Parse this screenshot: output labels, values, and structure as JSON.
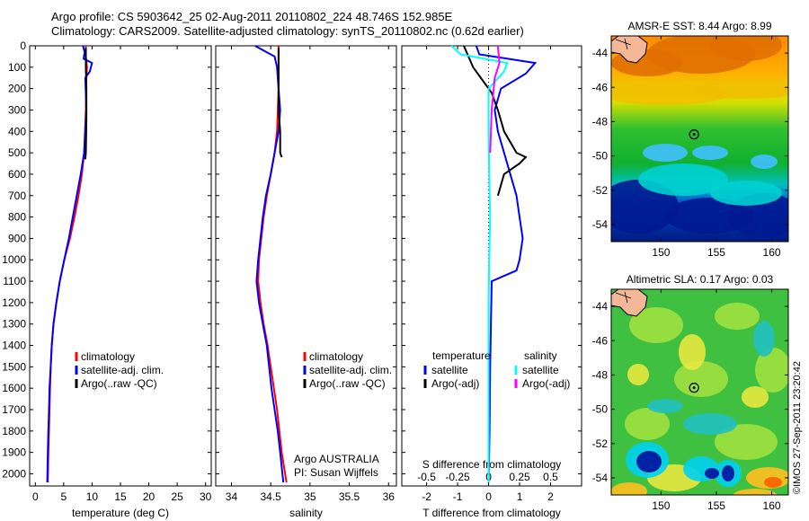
{
  "header": {
    "line1": "Argo profile: CS 5903642_25 02-Aug-2011 20110802_224 48.746S 152.985E",
    "line2": "Climatology: CARS2009. Satellite-adjusted climatology: synTS_20110802.nc (0.62d earlier)"
  },
  "stamp": "©IMOS 27-Sep-2011 23:20:42",
  "colors": {
    "red": "#ff0000",
    "blue": "#0000ff",
    "black": "#000000",
    "cyan": "#00ffff",
    "magenta": "#ff00ff"
  },
  "chart_data": [
    {
      "type": "line",
      "id": "temperature",
      "xlabel": "temperature (deg C)",
      "xlim": [
        -1,
        31
      ],
      "ylim": [
        2060,
        0
      ],
      "xticks": [
        "0",
        "5",
        "10",
        "15",
        "20",
        "25",
        "30"
      ],
      "xtick_values": [
        0,
        5,
        10,
        15,
        20,
        25,
        30
      ],
      "yticks": [
        0,
        100,
        200,
        300,
        400,
        500,
        600,
        700,
        800,
        900,
        1000,
        1100,
        1200,
        1300,
        1400,
        1500,
        1600,
        1700,
        1800,
        1900,
        2000
      ],
      "legend": [
        "climatology",
        "satellite-adj. clim.",
        "Argo(..raw -QC)"
      ],
      "series": [
        {
          "name": "climatology",
          "color": "red",
          "points": [
            [
              8.9,
              0
            ],
            [
              8.9,
              50
            ],
            [
              9.1,
              100
            ],
            [
              9.0,
              150
            ],
            [
              8.9,
              300
            ],
            [
              8.6,
              500
            ],
            [
              8.2,
              600
            ],
            [
              7.6,
              700
            ],
            [
              6.9,
              800
            ],
            [
              6.1,
              900
            ],
            [
              5.1,
              1000
            ],
            [
              4.3,
              1100
            ],
            [
              3.7,
              1200
            ],
            [
              3.2,
              1300
            ],
            [
              2.9,
              1400
            ],
            [
              2.7,
              1500
            ],
            [
              2.6,
              1600
            ],
            [
              2.5,
              1700
            ],
            [
              2.4,
              1800
            ],
            [
              2.3,
              1900
            ],
            [
              2.2,
              2040
            ]
          ]
        },
        {
          "name": "satellite-adj. clim.",
          "color": "blue",
          "points": [
            [
              8.4,
              0
            ],
            [
              8.7,
              30
            ],
            [
              8.5,
              60
            ],
            [
              10.0,
              80
            ],
            [
              9.6,
              120
            ],
            [
              8.8,
              150
            ],
            [
              9.0,
              300
            ],
            [
              8.6,
              500
            ],
            [
              8.0,
              600
            ],
            [
              7.3,
              700
            ],
            [
              6.6,
              800
            ],
            [
              5.9,
              900
            ],
            [
              5.1,
              1000
            ],
            [
              4.3,
              1100
            ],
            [
              3.7,
              1200
            ],
            [
              3.2,
              1300
            ],
            [
              2.9,
              1400
            ],
            [
              2.7,
              1500
            ],
            [
              2.5,
              1600
            ],
            [
              2.4,
              1700
            ],
            [
              2.3,
              1800
            ],
            [
              2.2,
              1900
            ],
            [
              2.1,
              2040
            ]
          ]
        },
        {
          "name": "Argo(..raw -QC)",
          "color": "black",
          "points": [
            [
              8.9,
              10
            ],
            [
              8.9,
              100
            ],
            [
              9.0,
              200
            ],
            [
              9.0,
              350
            ],
            [
              8.9,
              500
            ],
            [
              8.8,
              530
            ]
          ]
        }
      ]
    },
    {
      "type": "line",
      "id": "salinity",
      "xlabel": "salinity",
      "xlim": [
        33.8,
        36.1
      ],
      "ylim": [
        2060,
        0
      ],
      "xticks": [
        "34",
        "34.5",
        "35",
        "35.5",
        "36"
      ],
      "xtick_values": [
        34,
        34.5,
        35,
        35.5,
        36
      ],
      "yticks": [
        0,
        100,
        200,
        300,
        400,
        500,
        600,
        700,
        800,
        900,
        1000,
        1100,
        1200,
        1300,
        1400,
        1500,
        1600,
        1700,
        1800,
        1900,
        2000
      ],
      "legend": [
        "climatology",
        "satellite-adj. clim.",
        "Argo(..raw -QC)"
      ],
      "annotation": [
        "Argo AUSTRALIA",
        "PI: Susan Wijffels"
      ],
      "series": [
        {
          "name": "climatology",
          "color": "red",
          "points": [
            [
              34.6,
              0
            ],
            [
              34.6,
              200
            ],
            [
              34.58,
              400
            ],
            [
              34.55,
              500
            ],
            [
              34.5,
              600
            ],
            [
              34.45,
              700
            ],
            [
              34.41,
              800
            ],
            [
              34.38,
              900
            ],
            [
              34.35,
              1000
            ],
            [
              34.34,
              1100
            ],
            [
              34.37,
              1200
            ],
            [
              34.41,
              1300
            ],
            [
              34.46,
              1400
            ],
            [
              34.5,
              1500
            ],
            [
              34.54,
              1600
            ],
            [
              34.58,
              1700
            ],
            [
              34.61,
              1800
            ],
            [
              34.64,
              1900
            ],
            [
              34.7,
              2040
            ]
          ]
        },
        {
          "name": "satellite-adj. clim.",
          "color": "blue",
          "points": [
            [
              34.3,
              0
            ],
            [
              34.4,
              20
            ],
            [
              34.55,
              50
            ],
            [
              34.58,
              100
            ],
            [
              34.6,
              200
            ],
            [
              34.62,
              300
            ],
            [
              34.6,
              400
            ],
            [
              34.55,
              500
            ],
            [
              34.5,
              600
            ],
            [
              34.44,
              700
            ],
            [
              34.4,
              800
            ],
            [
              34.37,
              900
            ],
            [
              34.34,
              1000
            ],
            [
              34.32,
              1100
            ],
            [
              34.35,
              1200
            ],
            [
              34.4,
              1300
            ],
            [
              34.45,
              1400
            ],
            [
              34.48,
              1500
            ],
            [
              34.51,
              1600
            ],
            [
              34.55,
              1700
            ],
            [
              34.59,
              1800
            ],
            [
              34.62,
              1900
            ],
            [
              34.66,
              2040
            ]
          ]
        },
        {
          "name": "Argo(..raw -QC)",
          "color": "black",
          "points": [
            [
              34.6,
              10
            ],
            [
              34.6,
              100
            ],
            [
              34.6,
              200
            ],
            [
              34.6,
              300
            ],
            [
              34.62,
              400
            ],
            [
              34.62,
              500
            ],
            [
              34.64,
              520
            ]
          ]
        }
      ]
    },
    {
      "type": "line",
      "id": "difference",
      "xlabel": "T difference from climatology",
      "xlabel_top": "S difference from climatology",
      "xlim": [
        -2.8,
        3.0
      ],
      "ylim": [
        2060,
        0
      ],
      "xticks": [
        "-2",
        "-1",
        "0",
        "1",
        "2"
      ],
      "xtick_values": [
        -2,
        -1,
        0,
        1,
        2
      ],
      "xticks_top": [
        "-0.5",
        "-0.25",
        "0",
        "0.25",
        "0.5"
      ],
      "yticks": [
        0,
        100,
        200,
        300,
        400,
        500,
        600,
        700,
        800,
        900,
        1000,
        1100,
        1200,
        1300,
        1400,
        1500,
        1600,
        1700,
        1800,
        1900,
        2000
      ],
      "legend": {
        "temperature": {
          "heading": "temperature",
          "items": [
            "satellite",
            "Argo(-adj)"
          ]
        },
        "salinity": {
          "heading": "salinity",
          "items": [
            "satellite",
            "Argo(-adj)"
          ]
        }
      },
      "series": [
        {
          "name": "temperature satellite",
          "color": "blue",
          "points": [
            [
              -0.4,
              0
            ],
            [
              -0.3,
              40
            ],
            [
              1.5,
              80
            ],
            [
              1.2,
              130
            ],
            [
              0.4,
              200
            ],
            [
              0.2,
              300
            ],
            [
              0.3,
              400
            ],
            [
              0.5,
              500
            ],
            [
              0.7,
              600
            ],
            [
              0.9,
              700
            ],
            [
              1.0,
              800
            ],
            [
              1.1,
              900
            ],
            [
              1.0,
              1000
            ],
            [
              0.9,
              1050
            ],
            [
              0.1,
              1100
            ],
            [
              0.05,
              1500
            ],
            [
              0.03,
              1800
            ],
            [
              0.0,
              2040
            ]
          ]
        },
        {
          "name": "temperature Argo(-adj)",
          "color": "black",
          "points": [
            [
              -0.8,
              0
            ],
            [
              -0.5,
              100
            ],
            [
              0.1,
              220
            ],
            [
              0.3,
              300
            ],
            [
              0.5,
              400
            ],
            [
              0.9,
              500
            ],
            [
              1.2,
              520
            ],
            [
              1.0,
              550
            ],
            [
              0.5,
              600
            ],
            [
              0.3,
              700
            ]
          ]
        },
        {
          "name": "salinity satellite",
          "color": "cyan",
          "points": [
            [
              -1.2,
              0
            ],
            [
              -0.9,
              40
            ],
            [
              0.6,
              80
            ],
            [
              0.5,
              120
            ],
            [
              0.0,
              200
            ],
            [
              0.0,
              400
            ],
            [
              0.02,
              600
            ],
            [
              0.05,
              800
            ],
            [
              0.02,
              1000
            ],
            [
              0.0,
              1200
            ],
            [
              0.0,
              1500
            ],
            [
              0.0,
              2040
            ]
          ]
        },
        {
          "name": "salinity Argo(-adj)",
          "color": "magenta",
          "points": [
            [
              0.3,
              0
            ],
            [
              0.35,
              80
            ],
            [
              0.2,
              150
            ],
            [
              0.1,
              300
            ],
            [
              0.05,
              500
            ]
          ]
        }
      ]
    },
    {
      "type": "heatmap",
      "id": "sst-map",
      "title": "AMSR-E SST: 8.44 Argo: 8.99",
      "xlim": [
        145.5,
        161.5
      ],
      "ylim": [
        -55,
        -43
      ],
      "xticks": [
        "150",
        "155",
        "160"
      ],
      "xtick_values": [
        150,
        155,
        160
      ],
      "yticks": [
        "-44",
        "-46",
        "-48",
        "-50",
        "-52",
        "-54"
      ],
      "ytick_values": [
        -44,
        -46,
        -48,
        -50,
        -52,
        -54
      ],
      "marker": {
        "lon": 152.985,
        "lat": -48.746
      }
    },
    {
      "type": "heatmap",
      "id": "sla-map",
      "title": "Altimetric SLA: 0.17 Argo: 0.03",
      "xlim": [
        145.5,
        161.5
      ],
      "ylim": [
        -55,
        -43
      ],
      "xticks": [
        "150",
        "155",
        "160"
      ],
      "xtick_values": [
        150,
        155,
        160
      ],
      "yticks": [
        "-44",
        "-46",
        "-48",
        "-50",
        "-52",
        "-54"
      ],
      "ytick_values": [
        -44,
        -46,
        -48,
        -50,
        -52,
        -54
      ],
      "marker": {
        "lon": 152.985,
        "lat": -48.746
      }
    }
  ]
}
